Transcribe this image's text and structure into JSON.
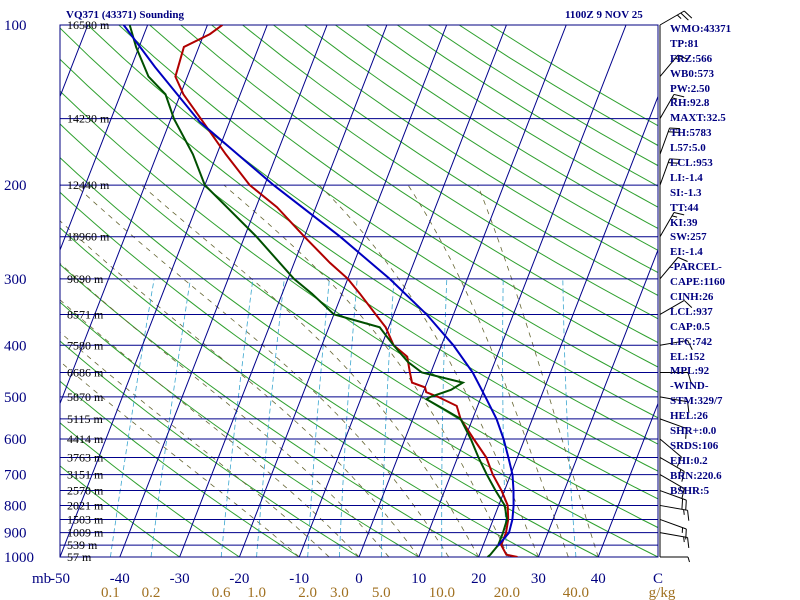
{
  "title_left": "VQ371 (43371) Sounding",
  "title_right": "1100Z  9 NOV 25",
  "colors": {
    "background": "#ffffff",
    "frame": "#000080",
    "isobar": "#00008b",
    "isotherm": "#00008b",
    "dry_adiabat": "#2fa02f",
    "moist_adiabat": "#666633",
    "mixing_ratio": "#3aa6cf",
    "temperature": "#b00000",
    "dewpoint": "#005000",
    "parcel": "#0000c0",
    "wind_barb": "#000000",
    "label_blue": "#000080",
    "mixing_label": "#a07020"
  },
  "chart_data": {
    "type": "skew-t log-p sounding",
    "y_axis": {
      "name": "pressure",
      "unit": "mb",
      "scale": "log",
      "range": [
        1000,
        100
      ],
      "ticks": [
        100,
        200,
        300,
        400,
        500,
        600,
        700,
        800,
        900,
        1000
      ]
    },
    "x_axis": {
      "name": "temperature",
      "unit": "°C",
      "range": [
        -50,
        50
      ],
      "ticks": [
        "-50",
        "-40",
        "-30",
        "-20",
        "-10",
        "0",
        "10",
        "20",
        "30",
        "40",
        "C"
      ]
    },
    "axis_unit_label": "mb",
    "mixing_ratio_labels": [
      "0.1",
      "0.2",
      "0.6",
      "1.0",
      "2.0",
      "3.0",
      "5.0",
      "10.0",
      "20.0",
      "40.0",
      "g/kg"
    ],
    "height_labels": [
      {
        "p": 100,
        "label": "16580 m"
      },
      {
        "p": 150,
        "label": "14230 m"
      },
      {
        "p": 200,
        "label": "12440 m"
      },
      {
        "p": 250,
        "label": "10960 m"
      },
      {
        "p": 300,
        "label": "9690 m"
      },
      {
        "p": 350,
        "label": "8571 m"
      },
      {
        "p": 400,
        "label": "7580 m"
      },
      {
        "p": 450,
        "label": "6686 m"
      },
      {
        "p": 500,
        "label": "5870 m"
      },
      {
        "p": 550,
        "label": "5115 m"
      },
      {
        "p": 600,
        "label": "4414 m"
      },
      {
        "p": 650,
        "label": "3763 m"
      },
      {
        "p": 700,
        "label": "3151 m"
      },
      {
        "p": 750,
        "label": "2570 m"
      },
      {
        "p": 800,
        "label": "2021 m"
      },
      {
        "p": 850,
        "label": "1503 m"
      },
      {
        "p": 900,
        "label": "1009 m"
      },
      {
        "p": 950,
        "label": "539 m"
      },
      {
        "p": 1000,
        "label": "57 m"
      }
    ],
    "series": [
      {
        "name": "temperature",
        "points": [
          [
            1000,
            26.5
          ],
          [
            990,
            24.5
          ],
          [
            950,
            23.0
          ],
          [
            900,
            23.0
          ],
          [
            850,
            22.5
          ],
          [
            800,
            21.5
          ],
          [
            750,
            19.5
          ],
          [
            700,
            17.0
          ],
          [
            650,
            14.8
          ],
          [
            600,
            11.5
          ],
          [
            550,
            8.0
          ],
          [
            520,
            6.5
          ],
          [
            500,
            2.8
          ],
          [
            490,
            0.5
          ],
          [
            480,
            0.0
          ],
          [
            470,
            -2.5
          ],
          [
            450,
            -3.5
          ],
          [
            420,
            -5.0
          ],
          [
            400,
            -8.0
          ],
          [
            370,
            -10.5
          ],
          [
            350,
            -13.0
          ],
          [
            320,
            -17.0
          ],
          [
            300,
            -20.0
          ],
          [
            280,
            -24.0
          ],
          [
            250,
            -30.0
          ],
          [
            220,
            -36.5
          ],
          [
            200,
            -42.5
          ],
          [
            175,
            -48.5
          ],
          [
            150,
            -55.0
          ],
          [
            135,
            -59.5
          ],
          [
            125,
            -62.0
          ],
          [
            110,
            -62.5
          ],
          [
            104,
            -59.0
          ],
          [
            100,
            -57.5
          ]
        ]
      },
      {
        "name": "dewpoint",
        "points": [
          [
            1000,
            21.5
          ],
          [
            990,
            21.8
          ],
          [
            950,
            22.5
          ],
          [
            900,
            22.5
          ],
          [
            850,
            22.3
          ],
          [
            800,
            21.0
          ],
          [
            750,
            18.5
          ],
          [
            700,
            16.0
          ],
          [
            650,
            13.5
          ],
          [
            600,
            11.0
          ],
          [
            550,
            8.0
          ],
          [
            530,
            5.0
          ],
          [
            505,
            1.0
          ],
          [
            500,
            1.5
          ],
          [
            485,
            4.5
          ],
          [
            470,
            6.0
          ],
          [
            450,
            -1.5
          ],
          [
            430,
            -4.5
          ],
          [
            400,
            -8.0
          ],
          [
            370,
            -11.5
          ],
          [
            350,
            -20.0
          ],
          [
            320,
            -25.0
          ],
          [
            300,
            -29.0
          ],
          [
            250,
            -38.0
          ],
          [
            200,
            -50.0
          ],
          [
            175,
            -54.0
          ],
          [
            150,
            -59.5
          ],
          [
            135,
            -62.5
          ],
          [
            125,
            -66.5
          ],
          [
            110,
            -70.5
          ],
          [
            100,
            -73.0
          ]
        ]
      },
      {
        "name": "parcel",
        "points": [
          [
            953,
            22.5
          ],
          [
            900,
            23.5
          ],
          [
            850,
            23.2
          ],
          [
            800,
            22.5
          ],
          [
            750,
            21.5
          ],
          [
            700,
            20.3
          ],
          [
            650,
            18.5
          ],
          [
            600,
            16.5
          ],
          [
            550,
            14.0
          ],
          [
            500,
            10.7
          ],
          [
            450,
            7.0
          ],
          [
            400,
            2.0
          ],
          [
            350,
            -4.5
          ],
          [
            300,
            -13.0
          ],
          [
            250,
            -24.0
          ],
          [
            200,
            -38.5
          ],
          [
            152,
            -55.0
          ],
          [
            120,
            -66.0
          ],
          [
            100,
            -74.0
          ]
        ]
      }
    ],
    "wind_barbs": [
      {
        "p": 1000,
        "dir": 90,
        "speed": 5
      },
      {
        "p": 900,
        "dir": 100,
        "speed": 15
      },
      {
        "p": 850,
        "dir": 110,
        "speed": 15
      },
      {
        "p": 800,
        "dir": 100,
        "speed": 15
      },
      {
        "p": 750,
        "dir": 110,
        "speed": 20
      },
      {
        "p": 700,
        "dir": 120,
        "speed": 15
      },
      {
        "p": 650,
        "dir": 120,
        "speed": 15
      },
      {
        "p": 600,
        "dir": 130,
        "speed": 10
      },
      {
        "p": 550,
        "dir": 110,
        "speed": 10
      },
      {
        "p": 500,
        "dir": 100,
        "speed": 10
      },
      {
        "p": 450,
        "dir": 90,
        "speed": 10
      },
      {
        "p": 400,
        "dir": 80,
        "speed": 10
      },
      {
        "p": 350,
        "dir": 60,
        "speed": 10
      },
      {
        "p": 300,
        "dir": 40,
        "speed": 10
      },
      {
        "p": 250,
        "dir": 30,
        "speed": 15
      },
      {
        "p": 200,
        "dir": 20,
        "speed": 20
      },
      {
        "p": 175,
        "dir": 20,
        "speed": 20
      },
      {
        "p": 150,
        "dir": 30,
        "speed": 15
      },
      {
        "p": 125,
        "dir": 40,
        "speed": 15
      },
      {
        "p": 100,
        "dir": 60,
        "speed": 25
      }
    ],
    "indices": [
      "WMO:43371",
      "TP:81",
      "FRZ:566",
      "WB0:573",
      "PW:2.50",
      "RH:92.8",
      "MAXT:32.5",
      "TH:5783",
      "L57:5.0",
      "LCL:953",
      "LI:-1.4",
      "SI:-1.3",
      "TT:44",
      "KI:39",
      "SW:257",
      "EI:-1.4",
      "-PARCEL-",
      "CAPE:1160",
      "CINH:26",
      "LCL:937",
      "CAP:0.5",
      "LFC:742",
      "EL:152",
      "MPL:92",
      "-WIND-",
      "STM:329/7",
      "HEL:26",
      "SHR+:0.0",
      "SRDS:106",
      "EHI:0.2",
      "BRN:220.6",
      "BSHR:5"
    ]
  }
}
